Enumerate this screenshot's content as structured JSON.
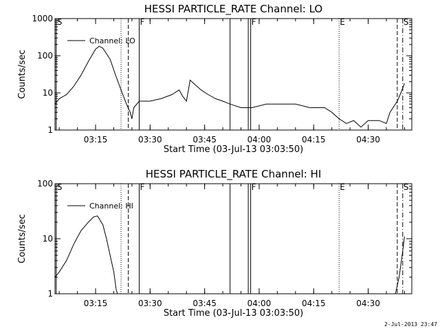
{
  "footer": {
    "timestamp": "2-Jul-2013 23:47"
  },
  "chart_data": [
    {
      "type": "line",
      "title": "HESSI PARTICLE_RATE Channel: LO",
      "xlabel": "Start Time (03-Jul-13 03:03:50)",
      "ylabel": "Counts/sec",
      "yscale": "log",
      "ylim": [
        1,
        1000
      ],
      "yticks": [
        {
          "v": 1,
          "label": "1"
        },
        {
          "v": 10,
          "label": "10"
        },
        {
          "v": 100,
          "label": "100"
        },
        {
          "v": 1000,
          "label": "1000"
        }
      ],
      "xlim": [
        "03:03:50",
        "04:42:00"
      ],
      "xticks": [
        "03:15",
        "03:30",
        "03:45",
        "04:00",
        "04:15",
        "04:30"
      ],
      "legend": "Channel: LO",
      "markers": [
        {
          "t": "03:04:10",
          "style": "solid",
          "label": "S"
        },
        {
          "t": "03:22:00",
          "style": "dotted",
          "label": ""
        },
        {
          "t": "03:24:00",
          "style": "dashed",
          "label": ""
        },
        {
          "t": "03:27:00",
          "style": "solid",
          "label": "F"
        },
        {
          "t": "03:52:00",
          "style": "solid",
          "label": ""
        },
        {
          "t": "03:57:00",
          "style": "solid",
          "label": ""
        },
        {
          "t": "03:57:40",
          "style": "solid",
          "label": "F"
        },
        {
          "t": "04:22:00",
          "style": "dotted",
          "label": "E"
        },
        {
          "t": "04:38:00",
          "style": "dashed",
          "label": ""
        },
        {
          "t": "04:39:30",
          "style": "dashdot",
          "label": "S"
        }
      ],
      "series": [
        {
          "name": "Channel: LO",
          "points": [
            [
              "03:03:50",
              5
            ],
            [
              "03:05:00",
              7
            ],
            [
              "03:07:00",
              9
            ],
            [
              "03:09:00",
              15
            ],
            [
              "03:11:00",
              30
            ],
            [
              "03:13:00",
              70
            ],
            [
              "03:15:00",
              150
            ],
            [
              "03:16:00",
              180
            ],
            [
              "03:17:00",
              160
            ],
            [
              "03:19:00",
              80
            ],
            [
              "03:20:30",
              30
            ],
            [
              "03:22:00",
              12
            ],
            [
              "03:23:30",
              5
            ],
            [
              "03:24:30",
              3
            ],
            [
              "03:25:00",
              2
            ],
            [
              "03:25:30",
              4
            ],
            [
              "03:27:00",
              6
            ],
            [
              "03:30:00",
              6
            ],
            [
              "03:33:00",
              7
            ],
            [
              "03:36:00",
              9
            ],
            [
              "03:38:00",
              12
            ],
            [
              "03:39:00",
              8
            ],
            [
              "03:40:00",
              6
            ],
            [
              "03:41:00",
              22
            ],
            [
              "03:42:00",
              18
            ],
            [
              "03:44:00",
              12
            ],
            [
              "03:46:00",
              9
            ],
            [
              "03:48:00",
              7
            ],
            [
              "03:50:00",
              6
            ],
            [
              "03:52:00",
              5
            ],
            [
              "03:55:00",
              4
            ],
            [
              "03:58:00",
              4
            ],
            [
              "04:02:00",
              5
            ],
            [
              "04:06:00",
              5
            ],
            [
              "04:10:00",
              5
            ],
            [
              "04:14:00",
              4
            ],
            [
              "04:18:00",
              4
            ],
            [
              "04:20:00",
              3
            ],
            [
              "04:22:00",
              2
            ],
            [
              "04:24:00",
              1.5
            ],
            [
              "04:26:00",
              1.8
            ],
            [
              "04:28:00",
              1.2
            ],
            [
              "04:30:00",
              1.8
            ],
            [
              "04:33:00",
              1.8
            ],
            [
              "04:35:00",
              1.5
            ],
            [
              "04:36:00",
              3
            ],
            [
              "04:38:00",
              6
            ],
            [
              "04:39:00",
              10
            ],
            [
              "04:40:00",
              18
            ]
          ]
        }
      ]
    },
    {
      "type": "line",
      "title": "HESSI PARTICLE_RATE Channel: HI",
      "xlabel": "Start Time (03-Jul-13 03:03:50)",
      "ylabel": "Counts/sec",
      "yscale": "log",
      "ylim": [
        1,
        100
      ],
      "yticks": [
        {
          "v": 1,
          "label": "1"
        },
        {
          "v": 10,
          "label": "10"
        },
        {
          "v": 100,
          "label": "100"
        }
      ],
      "xlim": [
        "03:03:50",
        "04:42:00"
      ],
      "xticks": [
        "03:15",
        "03:30",
        "03:45",
        "04:00",
        "04:15",
        "04:30"
      ],
      "legend": "Channel: HI",
      "markers": [
        {
          "t": "03:04:10",
          "style": "solid",
          "label": "S"
        },
        {
          "t": "03:22:00",
          "style": "dotted",
          "label": ""
        },
        {
          "t": "03:24:00",
          "style": "dashed",
          "label": ""
        },
        {
          "t": "03:27:00",
          "style": "solid",
          "label": "F"
        },
        {
          "t": "03:52:00",
          "style": "solid",
          "label": ""
        },
        {
          "t": "03:57:00",
          "style": "solid",
          "label": ""
        },
        {
          "t": "03:57:40",
          "style": "solid",
          "label": "F"
        },
        {
          "t": "04:22:00",
          "style": "dotted",
          "label": "E"
        },
        {
          "t": "04:38:00",
          "style": "dashed",
          "label": ""
        },
        {
          "t": "04:39:30",
          "style": "dashdot",
          "label": "S"
        }
      ],
      "series": [
        {
          "name": "Channel: HI",
          "points": [
            [
              "03:03:50",
              2
            ],
            [
              "03:05:00",
              2.5
            ],
            [
              "03:07:00",
              4
            ],
            [
              "03:09:00",
              8
            ],
            [
              "03:11:00",
              14
            ],
            [
              "03:13:00",
              20
            ],
            [
              "03:14:30",
              25
            ],
            [
              "03:15:30",
              26
            ],
            [
              "03:17:00",
              18
            ],
            [
              "03:18:00",
              10
            ],
            [
              "03:19:00",
              5
            ],
            [
              "03:20:00",
              2.5
            ],
            [
              "03:20:40",
              1.2
            ],
            [
              "03:21:00",
              1
            ]
          ]
        },
        {
          "name": "",
          "points": [
            [
              "04:37:30",
              1
            ],
            [
              "04:38:30",
              2
            ],
            [
              "04:39:30",
              6
            ],
            [
              "04:40:00",
              11
            ]
          ]
        }
      ]
    }
  ]
}
